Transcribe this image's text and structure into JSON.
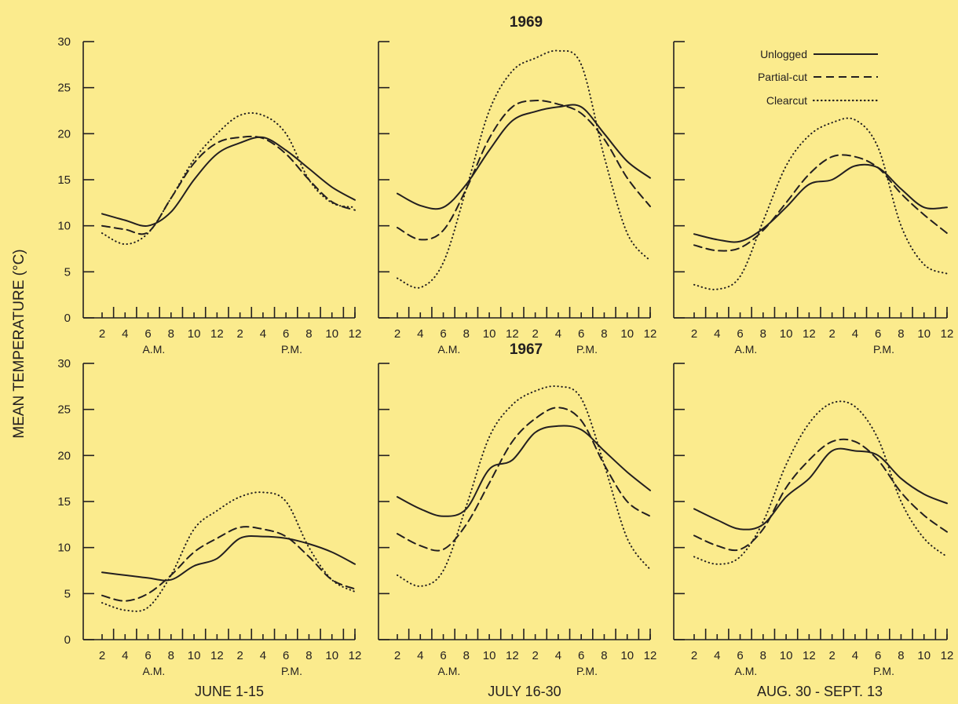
{
  "chart_data": {
    "type": "line",
    "ylabel": "MEAN TEMPERATURE (°C)",
    "ylim": [
      0,
      30
    ],
    "yticks": [
      0,
      5,
      10,
      15,
      20,
      25,
      30
    ],
    "x": [
      2,
      4,
      6,
      8,
      10,
      12,
      14,
      16,
      18,
      20,
      22,
      24
    ],
    "x_tick_labels": [
      "2",
      "4",
      "6",
      "8",
      "10",
      "12",
      "2",
      "4",
      "6",
      "8",
      "10",
      "12"
    ],
    "am_label": "A.M.",
    "pm_label": "P.M.",
    "period_labels": [
      "JUNE 1-15",
      "JULY 16-30",
      "AUG. 30 - SEPT. 13"
    ],
    "year_labels": [
      "1969",
      "1967"
    ],
    "legend": {
      "placement": "top-right",
      "entries": [
        {
          "name": "Unlogged",
          "style": "solid"
        },
        {
          "name": "Partial-cut",
          "style": "dashed"
        },
        {
          "name": "Clearcut",
          "style": "dotted"
        }
      ]
    },
    "panels": [
      {
        "year": "1969",
        "period": "JUNE 1-15",
        "series": [
          {
            "name": "Unlogged",
            "values": [
              11.3,
              10.6,
              10.0,
              11.5,
              15.0,
              17.8,
              19.0,
              19.6,
              18.2,
              16.2,
              14.2,
              12.8
            ]
          },
          {
            "name": "Partial-cut",
            "values": [
              10.0,
              9.6,
              9.3,
              13.0,
              16.8,
              19.0,
              19.6,
              19.5,
              17.8,
              15.0,
              12.6,
              11.7
            ]
          },
          {
            "name": "Clearcut",
            "values": [
              9.2,
              8.0,
              9.2,
              13.0,
              17.2,
              20.0,
              22.0,
              22.0,
              20.0,
              15.0,
              12.5,
              12.0
            ]
          }
        ]
      },
      {
        "year": "1969",
        "period": "JULY 16-30",
        "series": [
          {
            "name": "Unlogged",
            "values": [
              13.5,
              12.2,
              12.0,
              14.5,
              18.2,
              21.4,
              22.4,
              22.9,
              22.9,
              20.0,
              17.0,
              15.2
            ]
          },
          {
            "name": "Partial-cut",
            "values": [
              9.8,
              8.5,
              9.5,
              14.0,
              19.5,
              22.9,
              23.6,
              23.2,
              22.2,
              19.4,
              15.2,
              12.1
            ]
          },
          {
            "name": "Clearcut",
            "values": [
              4.3,
              3.3,
              6.0,
              14.0,
              22.5,
              26.8,
              28.2,
              29.0,
              27.5,
              17.5,
              9.2,
              6.2
            ]
          }
        ]
      },
      {
        "year": "1969",
        "period": "AUG. 30 - SEPT. 13",
        "series": [
          {
            "name": "Unlogged",
            "values": [
              9.1,
              8.5,
              8.3,
              9.7,
              12.0,
              14.5,
              15.0,
              16.5,
              16.3,
              14.0,
              12.0,
              12.0
            ]
          },
          {
            "name": "Partial-cut",
            "values": [
              7.9,
              7.3,
              7.6,
              9.5,
              12.5,
              15.6,
              17.5,
              17.5,
              16.3,
              13.5,
              11.2,
              9.2
            ]
          },
          {
            "name": "Clearcut",
            "values": [
              3.6,
              3.1,
              4.5,
              10.5,
              16.5,
              19.8,
              21.2,
              21.5,
              18.5,
              10.0,
              5.8,
              4.8
            ]
          }
        ]
      },
      {
        "year": "1967",
        "period": "JUNE 1-15",
        "series": [
          {
            "name": "Unlogged",
            "values": [
              7.3,
              7.0,
              6.7,
              6.5,
              8.0,
              8.8,
              11.0,
              11.2,
              11.0,
              10.4,
              9.5,
              8.2
            ]
          },
          {
            "name": "Partial-cut",
            "values": [
              4.8,
              4.2,
              5.0,
              7.0,
              9.5,
              11.0,
              12.2,
              12.0,
              11.2,
              9.0,
              6.5,
              5.5
            ]
          },
          {
            "name": "Clearcut",
            "values": [
              4.0,
              3.2,
              3.5,
              7.0,
              12.0,
              14.0,
              15.5,
              16.0,
              15.0,
              10.0,
              6.5,
              5.2
            ]
          }
        ]
      },
      {
        "year": "1967",
        "period": "JULY 16-30",
        "series": [
          {
            "name": "Unlogged",
            "values": [
              15.5,
              14.2,
              13.4,
              14.2,
              18.5,
              19.5,
              22.5,
              23.2,
              22.8,
              20.5,
              18.2,
              16.2
            ]
          },
          {
            "name": "Partial-cut",
            "values": [
              11.5,
              10.2,
              9.8,
              12.5,
              17.0,
              21.5,
              24.0,
              25.2,
              23.8,
              19.0,
              15.0,
              13.4
            ]
          },
          {
            "name": "Clearcut",
            "values": [
              7.0,
              5.8,
              7.5,
              14.5,
              22.0,
              25.5,
              27.0,
              27.5,
              26.2,
              19.0,
              11.0,
              7.6
            ]
          }
        ]
      },
      {
        "year": "1967",
        "period": "AUG. 30 - SEPT. 13",
        "series": [
          {
            "name": "Unlogged",
            "values": [
              14.2,
              13.0,
              12.0,
              12.5,
              15.5,
              17.5,
              20.5,
              20.5,
              20.0,
              17.5,
              15.8,
              14.8
            ]
          },
          {
            "name": "Partial-cut",
            "values": [
              11.3,
              10.2,
              9.8,
              12.0,
              16.5,
              19.5,
              21.5,
              21.5,
              19.5,
              16.0,
              13.5,
              11.7
            ]
          },
          {
            "name": "Clearcut",
            "values": [
              9.0,
              8.2,
              9.0,
              12.8,
              19.0,
              23.5,
              25.7,
              25.3,
              21.8,
              15.0,
              11.0,
              9.0
            ]
          }
        ]
      }
    ]
  }
}
